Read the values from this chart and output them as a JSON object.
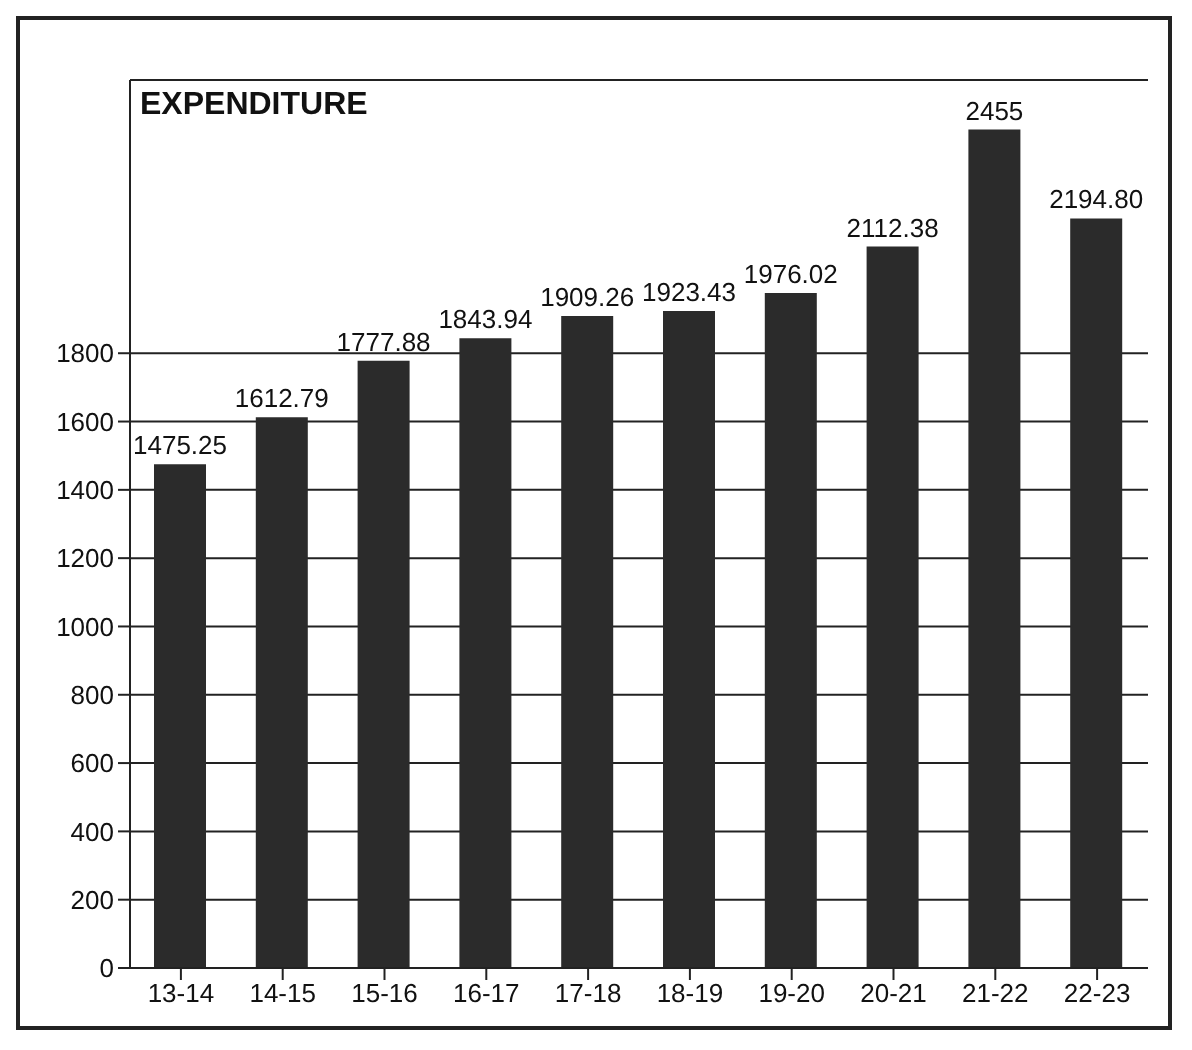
{
  "chart_data": {
    "type": "bar",
    "title": "EXPENDITURE",
    "categories": [
      "13-14",
      "14-15",
      "15-16",
      "16-17",
      "17-18",
      "18-19",
      "19-20",
      "20-21",
      "21-22",
      "22-23"
    ],
    "values": [
      1475.25,
      1612.79,
      1777.88,
      1843.94,
      1909.26,
      1923.43,
      1976.02,
      2112.38,
      2455,
      2194.8
    ],
    "value_labels": [
      "1475.25",
      "1612.79",
      "1777.88",
      "1843.94",
      "1909.26",
      "1923.43",
      "1976.02",
      "2112.38",
      "2455",
      "2194.80"
    ],
    "color": "#2b2b2b",
    "ylim": [
      0,
      2600
    ],
    "yticks": [
      0,
      200,
      400,
      600,
      800,
      1000,
      1200,
      1400,
      1600,
      1800
    ],
    "grid": "y"
  }
}
